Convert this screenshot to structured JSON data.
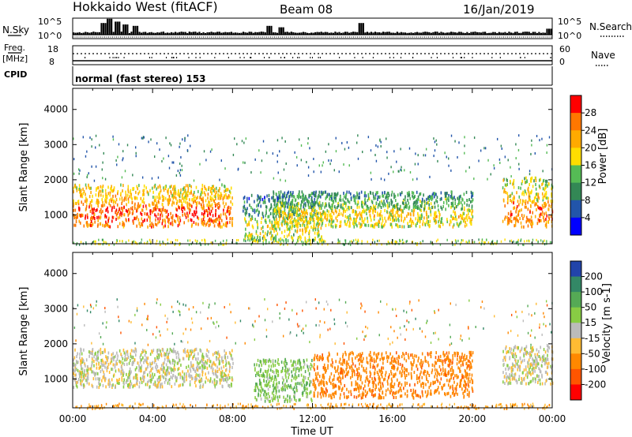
{
  "header": {
    "station": "Hokkaido West (fitACF)",
    "beam": "Beam 08",
    "date": "16/Jan/2019"
  },
  "strips": {
    "nsky_label": "N.Sky",
    "nsearch_label": "N.Search",
    "nsky_ticks": [
      "10^5",
      "10^0"
    ],
    "nsearch_ticks": [
      "10^5",
      "10^0"
    ],
    "freq_label": "Freq.",
    "freq_unit": "[MHz]",
    "freq_ticks": [
      "18",
      "8"
    ],
    "nave_label": "Nave",
    "nave_ticks": [
      "60",
      "0"
    ],
    "cpid_label": "CPID",
    "cpid_value": "normal (fast stereo) 153"
  },
  "chart_data": [
    {
      "type": "heatmap",
      "name": "power",
      "ylabel": "Slant Range [km]",
      "y_ticks": [
        "4000",
        "3000",
        "2000",
        "1000"
      ],
      "ylim": [
        180,
        4600
      ],
      "colorbar_label": "Power [dB]",
      "colorbar_ticks": [
        "28",
        "24",
        "20",
        "16",
        "12",
        "8",
        "4"
      ],
      "colorbar_colors": [
        "#ff0000",
        "#ff7700",
        "#ffaa00",
        "#ffdd00",
        "#55bb55",
        "#338855",
        "#2255aa",
        "#0000ff"
      ],
      "regions": [
        {
          "t": [
            0.0,
            8.0
          ],
          "r": [
            700,
            1900
          ],
          "v": 18
        },
        {
          "t": [
            8.5,
            12.5
          ],
          "r": [
            300,
            1600
          ],
          "v": 8
        },
        {
          "t": [
            10.0,
            20.0
          ],
          "r": [
            700,
            1700
          ],
          "v": 10
        },
        {
          "t": [
            21.5,
            24.0
          ],
          "r": [
            700,
            2100
          ],
          "v": 16
        }
      ]
    },
    {
      "type": "heatmap",
      "name": "velocity",
      "ylabel": "Slant Range [km]",
      "y_ticks": [
        "4000",
        "3000",
        "2000",
        "1000"
      ],
      "ylim": [
        180,
        4600
      ],
      "xlabel": "Time UT",
      "x_ticks": [
        "00:00",
        "04:00",
        "08:00",
        "12:00",
        "16:00",
        "20:00",
        "00:00"
      ],
      "xlim": [
        0,
        24
      ],
      "colorbar_label": "Velocity [m s-1]",
      "colorbar_ticks": [
        "200",
        "100",
        "50",
        "15",
        "-15",
        "-50",
        "-100",
        "-200"
      ],
      "colorbar_colors": [
        "#2244aa",
        "#338866",
        "#55aa55",
        "#88cc44",
        "#bbbbbb",
        "#ffbb33",
        "#ff8800",
        "#ff5500",
        "#ff0000"
      ],
      "regions": [
        {
          "t": [
            0.0,
            8.0
          ],
          "r": [
            800,
            1900
          ],
          "v": 0
        },
        {
          "t": [
            9.0,
            12.0
          ],
          "r": [
            400,
            1600
          ],
          "v": 40
        },
        {
          "t": [
            12.0,
            20.0
          ],
          "r": [
            500,
            1800
          ],
          "v": -80
        },
        {
          "t": [
            21.5,
            24.0
          ],
          "r": [
            900,
            2000
          ],
          "v": 0
        }
      ]
    }
  ]
}
